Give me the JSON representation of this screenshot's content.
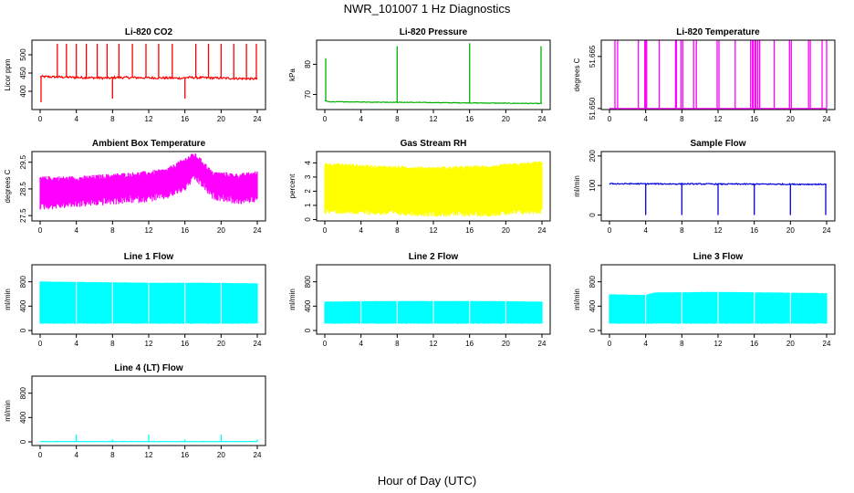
{
  "title": "NWR_101007  1 Hz Diagnostics",
  "xlabel": "Hour of Day (UTC)",
  "chart_data": [
    {
      "type": "line",
      "title": "Li-820 CO2",
      "ylabel": "Licor ppm",
      "color": "#ff0000",
      "xlim": [
        0,
        24
      ],
      "ylim": [
        350,
        540
      ],
      "xticks": [
        0,
        4,
        8,
        12,
        16,
        20,
        24
      ],
      "yticks": [
        400,
        450,
        500
      ],
      "series": [
        {
          "baseline": 440,
          "noise": 3,
          "segments": [
            [
              0,
              0.3,
              440,
              440
            ],
            [
              0.3,
              7.8,
              440,
              436
            ],
            [
              7.8,
              8.2,
              436,
              438
            ],
            [
              8.2,
              15.8,
              438,
              436
            ],
            [
              15.8,
              16.2,
              436,
              438
            ],
            [
              16.2,
              24,
              438,
              434
            ]
          ],
          "spikes": [
            [
              0.1,
              370
            ],
            [
              1.9,
              530
            ],
            [
              2.9,
              530
            ],
            [
              4.0,
              530
            ],
            [
              5.1,
              530
            ],
            [
              6.3,
              530
            ],
            [
              7.4,
              530
            ],
            [
              8.0,
              380
            ],
            [
              8.7,
              530
            ],
            [
              10.2,
              530
            ],
            [
              11.7,
              530
            ],
            [
              13.1,
              530
            ],
            [
              14.6,
              530
            ],
            [
              16.0,
              380
            ],
            [
              17.2,
              530
            ],
            [
              18.6,
              530
            ],
            [
              20.0,
              530
            ],
            [
              21.4,
              530
            ],
            [
              22.8,
              530
            ],
            [
              23.9,
              530
            ]
          ]
        }
      ]
    },
    {
      "type": "line",
      "title": "Li-820 Pressure",
      "ylabel": "kPa",
      "color": "#00b000",
      "xlim": [
        0,
        24
      ],
      "ylim": [
        65,
        88
      ],
      "xticks": [
        0,
        4,
        8,
        12,
        16,
        20,
        24
      ],
      "yticks": [
        70,
        80
      ],
      "series": [
        {
          "baseline": 67.5,
          "noise": 0.1,
          "segments": [
            [
              0,
              0.4,
              68,
              67.6
            ],
            [
              0.4,
              24,
              67.6,
              67.0
            ]
          ],
          "spikes": [
            [
              0.1,
              82
            ],
            [
              8.0,
              86
            ],
            [
              16.0,
              87
            ],
            [
              23.9,
              86
            ]
          ]
        }
      ]
    },
    {
      "type": "line",
      "title": "Li-820 Temperature",
      "ylabel": "degrees C",
      "color": "#ff00ff",
      "xlim": [
        0,
        24
      ],
      "ylim": [
        51.6497,
        51.6697
      ],
      "xticks": [
        0,
        4,
        8,
        12,
        16,
        20,
        24
      ],
      "yticks": [
        51.65,
        51.665
      ],
      "ytick_labels": [
        "51.650",
        "51.665"
      ],
      "series": [
        {
          "baseline": 51.65,
          "noise": 0,
          "segments": [
            [
              0,
              24,
              51.65,
              51.65
            ]
          ],
          "spikes": [
            [
              0.6,
              51.67
            ],
            [
              0.9,
              51.67
            ],
            [
              3.2,
              51.67
            ],
            [
              3.9,
              51.67
            ],
            [
              4.0,
              51.67
            ],
            [
              4.1,
              51.67
            ],
            [
              5.5,
              51.67
            ],
            [
              7.3,
              51.67
            ],
            [
              7.4,
              51.67
            ],
            [
              7.9,
              51.67
            ],
            [
              8.1,
              51.67
            ],
            [
              9.3,
              51.67
            ],
            [
              9.6,
              51.67
            ],
            [
              11.9,
              51.67
            ],
            [
              12.1,
              51.67
            ],
            [
              13.9,
              51.67
            ],
            [
              15.6,
              51.67
            ],
            [
              15.8,
              51.67
            ],
            [
              15.9,
              51.67
            ],
            [
              16.1,
              51.67
            ],
            [
              16.2,
              51.67
            ],
            [
              16.4,
              51.67
            ],
            [
              16.6,
              51.67
            ],
            [
              18.2,
              51.67
            ],
            [
              19.9,
              51.67
            ],
            [
              20.1,
              51.67
            ],
            [
              22.0,
              51.67
            ],
            [
              22.2,
              51.67
            ],
            [
              23.5,
              51.67
            ],
            [
              24.0,
              51.67
            ]
          ]
        }
      ]
    },
    {
      "type": "line",
      "title": "Ambient Box Temperature",
      "ylabel": "degrees C",
      "color": "#ff00ff",
      "xlim": [
        0,
        24
      ],
      "ylim": [
        27.3,
        29.9
      ],
      "xticks": [
        0,
        4,
        8,
        12,
        16,
        20,
        24
      ],
      "yticks": [
        27.5,
        28.5,
        29.5
      ],
      "series": [
        {
          "band": [
            [
              0,
              28.0,
              28.8
            ],
            [
              4,
              28.1,
              28.8
            ],
            [
              8,
              28.2,
              28.9
            ],
            [
              12,
              28.3,
              29.0
            ],
            [
              14,
              28.4,
              29.1
            ],
            [
              16,
              28.7,
              29.5
            ],
            [
              17,
              29.1,
              29.7
            ],
            [
              18,
              28.8,
              29.4
            ],
            [
              19,
              28.4,
              29.0
            ],
            [
              22,
              28.2,
              28.9
            ],
            [
              24,
              28.3,
              29.0
            ]
          ],
          "band_noise": 0.3
        }
      ]
    },
    {
      "type": "line",
      "title": "Gas Stream RH",
      "ylabel": "percent",
      "color": "#ffff00",
      "xlim": [
        0,
        24
      ],
      "ylim": [
        -0.1,
        4.8
      ],
      "xticks": [
        0,
        4,
        8,
        12,
        16,
        20,
        24
      ],
      "yticks": [
        0,
        1,
        2,
        3,
        4
      ],
      "series": [
        {
          "band": [
            [
              0,
              0.8,
              3.8
            ],
            [
              6,
              0.7,
              3.6
            ],
            [
              12,
              0.6,
              3.5
            ],
            [
              18,
              0.6,
              3.6
            ],
            [
              24,
              0.8,
              3.9
            ]
          ],
          "band_noise": 0.4
        }
      ]
    },
    {
      "type": "line",
      "title": "Sample Flow",
      "ylabel": "ml/min",
      "color": "#0000dd",
      "xlim": [
        0,
        24
      ],
      "ylim": [
        -20,
        215
      ],
      "xticks": [
        0,
        4,
        8,
        12,
        16,
        20,
        24
      ],
      "yticks": [
        0,
        100,
        200
      ],
      "series": [
        {
          "baseline": 105,
          "noise": 2,
          "segments": [
            [
              0,
              24,
              106,
              104
            ]
          ],
          "spikes": [
            [
              4.0,
              0
            ],
            [
              8.0,
              0
            ],
            [
              12.0,
              0
            ],
            [
              16.0,
              0
            ],
            [
              20.0,
              0
            ],
            [
              23.9,
              0
            ]
          ]
        }
      ]
    },
    {
      "type": "line",
      "title": "Line 1 Flow",
      "ylabel": "ml/min",
      "color": "#00ffff",
      "xlim": [
        0,
        24
      ],
      "ylim": [
        -60,
        1080
      ],
      "xticks": [
        0,
        4,
        8,
        12,
        16,
        20,
        24
      ],
      "yticks": [
        0,
        400,
        800
      ],
      "ytick_labels": [
        "0",
        "400",
        "800"
      ],
      "series": [
        {
          "band": [
            [
              0,
              120,
              800
            ],
            [
              6,
              120,
              790
            ],
            [
              12,
              120,
              780
            ],
            [
              18,
              120,
              780
            ],
            [
              24,
              120,
              770
            ]
          ],
          "band_noise": 10,
          "gaps": [
            4.0,
            8.0,
            12.0,
            16.0,
            20.0
          ]
        }
      ]
    },
    {
      "type": "line",
      "title": "Line 2 Flow",
      "ylabel": "ml/min",
      "color": "#00ffff",
      "xlim": [
        0,
        24
      ],
      "ylim": [
        -60,
        1080
      ],
      "xticks": [
        0,
        4,
        8,
        12,
        16,
        20,
        24
      ],
      "yticks": [
        0,
        400,
        800
      ],
      "series": [
        {
          "band": [
            [
              0,
              120,
              470
            ],
            [
              6,
              120,
              480
            ],
            [
              12,
              120,
              480
            ],
            [
              18,
              120,
              480
            ],
            [
              24,
              120,
              470
            ]
          ],
          "band_noise": 10,
          "gaps": [
            4.0,
            8.0,
            12.0,
            16.0,
            20.0
          ]
        }
      ]
    },
    {
      "type": "line",
      "title": "Line 3 Flow",
      "ylabel": "ml/min",
      "color": "#00ffff",
      "xlim": [
        0,
        24
      ],
      "ylim": [
        -60,
        1080
      ],
      "xticks": [
        0,
        4,
        8,
        12,
        16,
        20,
        24
      ],
      "yticks": [
        0,
        400,
        800
      ],
      "series": [
        {
          "band": [
            [
              0,
              120,
              590
            ],
            [
              4,
              120,
              580
            ],
            [
              5,
              120,
              620
            ],
            [
              12,
              120,
              630
            ],
            [
              18,
              120,
              620
            ],
            [
              24,
              120,
              610
            ]
          ],
          "band_noise": 10,
          "gaps": [
            4.0,
            8.0,
            12.0,
            16.0,
            20.0
          ]
        }
      ]
    },
    {
      "type": "line",
      "title": "Line 4 (LT) Flow",
      "ylabel": "ml/min",
      "color": "#00ffff",
      "xlim": [
        0,
        24
      ],
      "ylim": [
        -60,
        1080
      ],
      "xticks": [
        0,
        4,
        8,
        12,
        16,
        20,
        24
      ],
      "yticks": [
        0,
        400,
        800
      ],
      "series": [
        {
          "baseline": 5,
          "noise": 3,
          "segments": [
            [
              0,
              24,
              5,
              5
            ]
          ],
          "spikes": [
            [
              4.0,
              120
            ],
            [
              8.0,
              40
            ],
            [
              12.0,
              120
            ],
            [
              16.0,
              40
            ],
            [
              20.0,
              120
            ],
            [
              24.0,
              40
            ]
          ]
        }
      ]
    }
  ]
}
